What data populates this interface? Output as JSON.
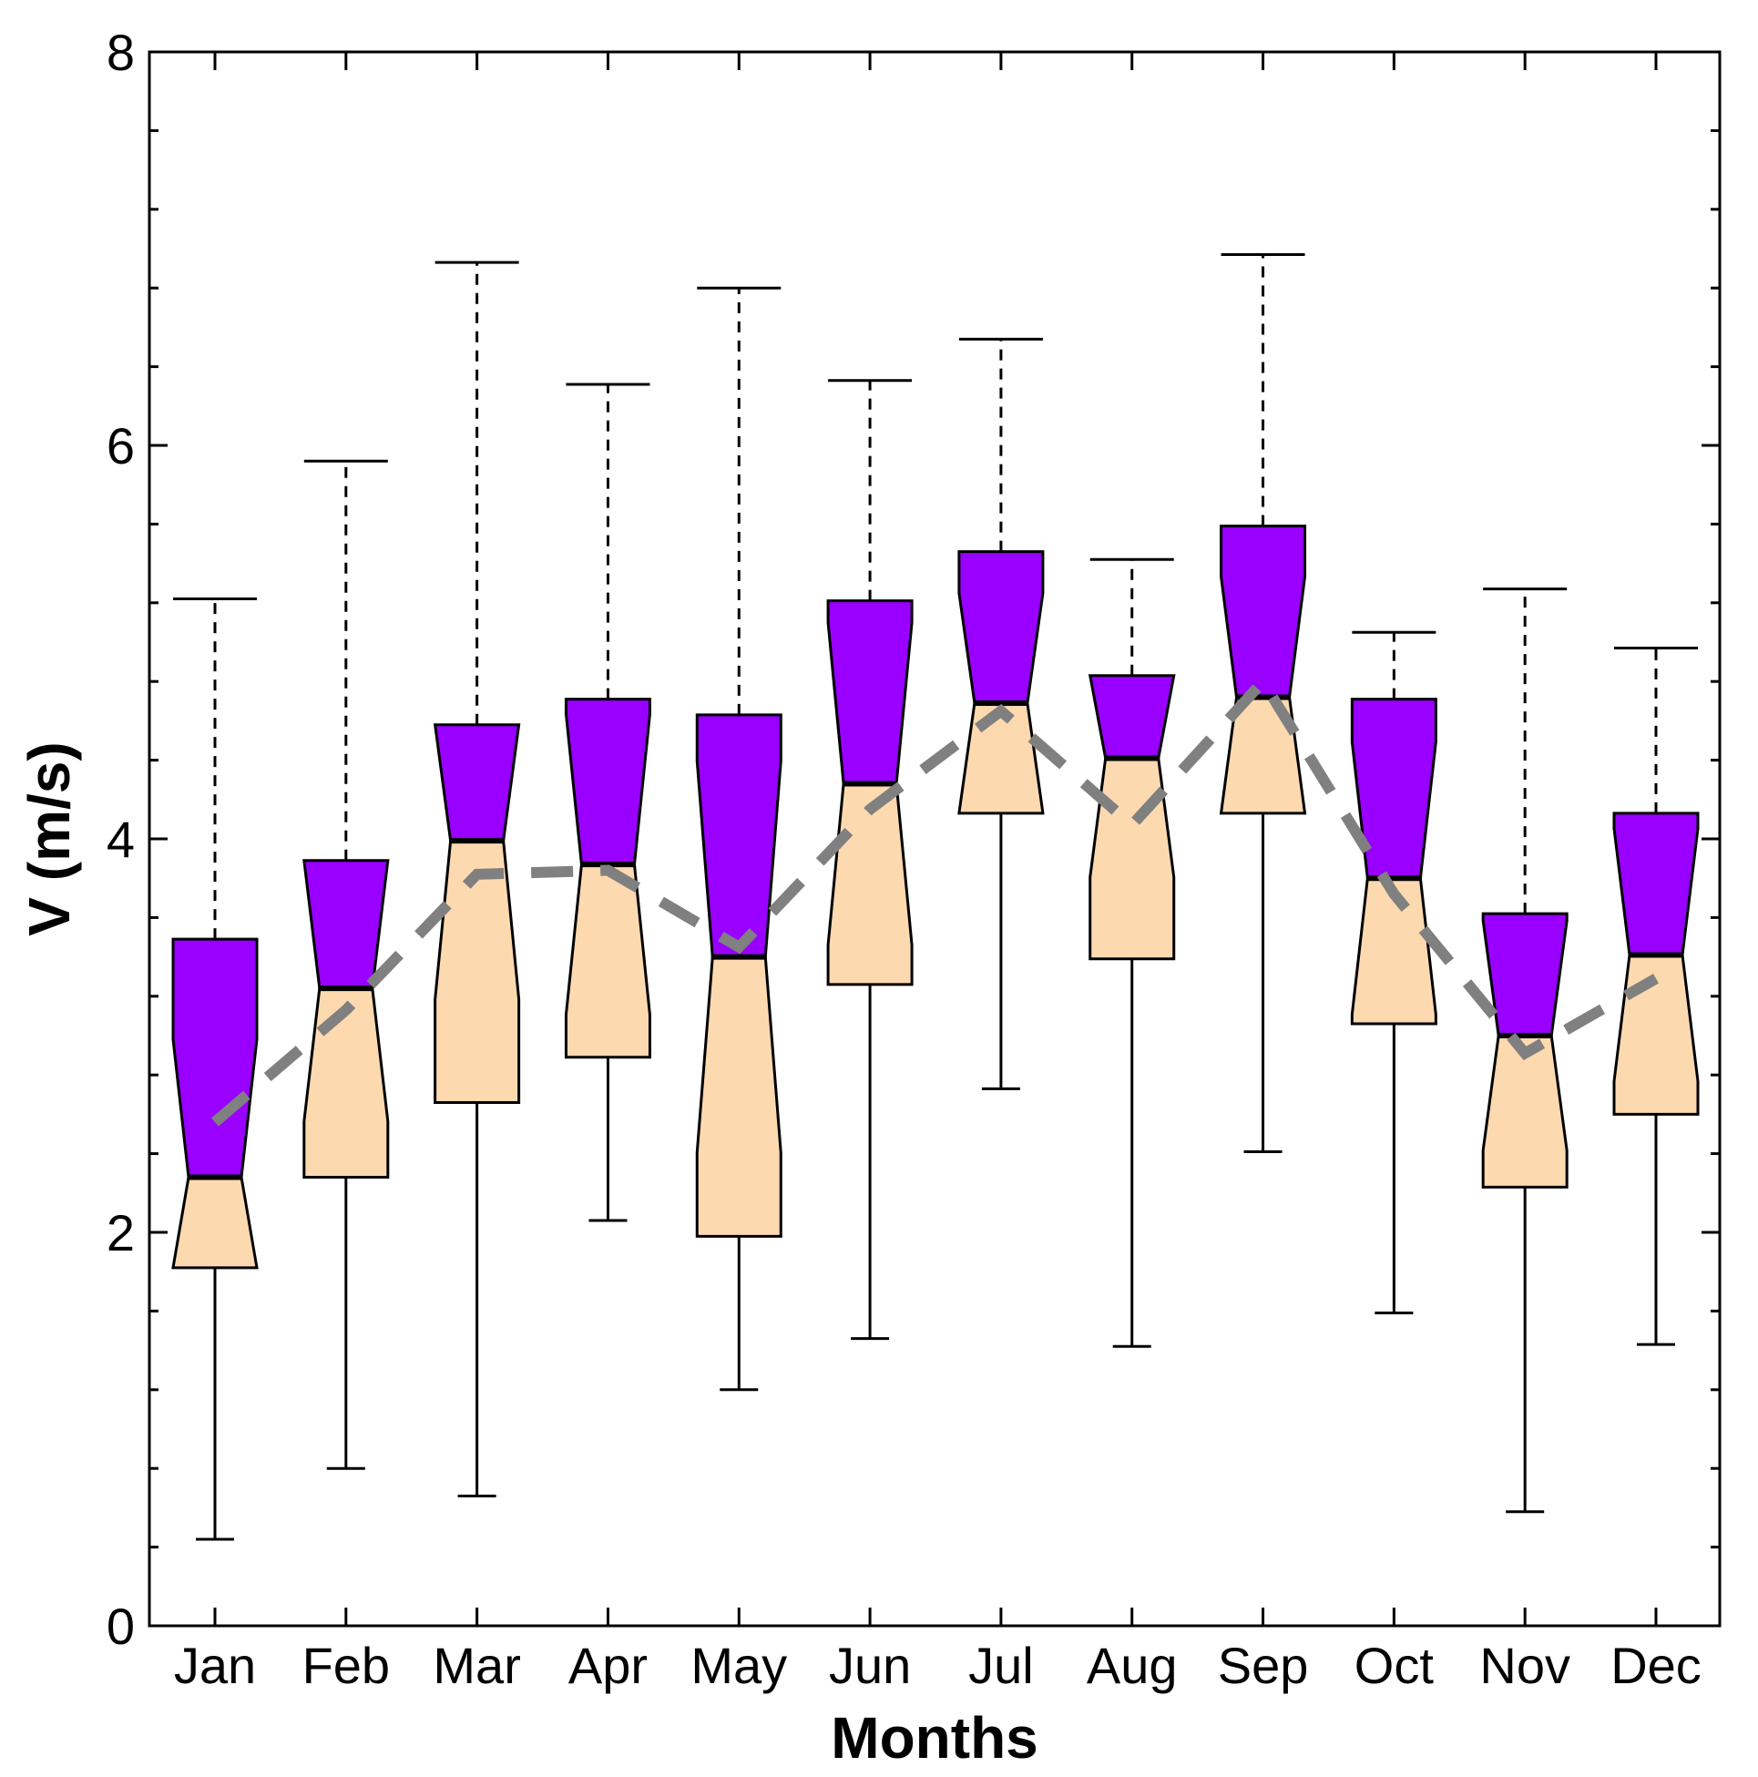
{
  "chart_data": {
    "type": "boxplot",
    "title": "",
    "xlabel": "Months",
    "ylabel": "V (m/s)",
    "ylim": [
      0,
      8
    ],
    "yticks": [
      "0",
      "2",
      "4",
      "6",
      "8"
    ],
    "categories": [
      "Jan",
      "Feb",
      "Mar",
      "Apr",
      "May",
      "Jun",
      "Jul",
      "Aug",
      "Sep",
      "Oct",
      "Nov",
      "Dec"
    ],
    "boxes": [
      {
        "whisker_low": 0.44,
        "q1": 1.82,
        "median": 2.28,
        "q3": 3.49,
        "whisker_high": 5.22
      },
      {
        "whisker_low": 0.8,
        "q1": 2.28,
        "median": 3.24,
        "q3": 3.89,
        "whisker_high": 5.92
      },
      {
        "whisker_low": 0.66,
        "q1": 2.66,
        "median": 3.99,
        "q3": 4.58,
        "whisker_high": 6.93
      },
      {
        "whisker_low": 2.06,
        "q1": 2.89,
        "median": 3.87,
        "q3": 4.71,
        "whisker_high": 6.31
      },
      {
        "whisker_low": 1.2,
        "q1": 1.98,
        "median": 3.4,
        "q3": 4.63,
        "whisker_high": 6.8
      },
      {
        "whisker_low": 1.46,
        "q1": 3.26,
        "median": 4.28,
        "q3": 5.21,
        "whisker_high": 6.33
      },
      {
        "whisker_low": 2.73,
        "q1": 4.13,
        "median": 4.69,
        "q3": 5.46,
        "whisker_high": 6.54
      },
      {
        "whisker_low": 1.42,
        "q1": 3.39,
        "median": 4.41,
        "q3": 4.83,
        "whisker_high": 5.42
      },
      {
        "whisker_low": 2.41,
        "q1": 4.13,
        "median": 4.72,
        "q3": 5.59,
        "whisker_high": 6.97
      },
      {
        "whisker_low": 1.59,
        "q1": 3.06,
        "median": 3.8,
        "q3": 4.71,
        "whisker_high": 5.05
      },
      {
        "whisker_low": 0.58,
        "q1": 2.23,
        "median": 3.0,
        "q3": 3.62,
        "whisker_high": 5.27
      },
      {
        "whisker_low": 1.43,
        "q1": 2.6,
        "median": 3.41,
        "q3": 4.13,
        "whisker_high": 4.97
      }
    ],
    "mean_line": [
      2.56,
      3.13,
      3.82,
      3.84,
      3.45,
      4.15,
      4.65,
      4.07,
      4.8,
      3.72,
      2.91,
      3.29
    ],
    "colors": {
      "upper_half": "#9900ff",
      "lower_half": "#fdd9b0",
      "mean_line": "#808080",
      "stroke": "#000000"
    },
    "grid": false
  }
}
